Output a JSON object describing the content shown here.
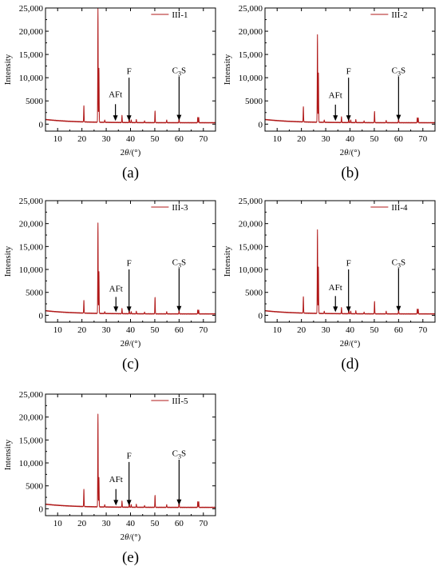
{
  "chart_data": [
    {
      "type": "line",
      "caption": "(a)",
      "series_label": "III-1",
      "xlabel_main": "2",
      "xlabel_theta": "θ",
      "xlabel_unit": "/(°)",
      "ylabel": "Intensity",
      "xlim": [
        5,
        75
      ],
      "ylim": [
        -1500,
        25000
      ],
      "x_ticks": [
        10,
        20,
        30,
        40,
        50,
        60,
        70
      ],
      "y_ticks": [
        0,
        5000,
        10000,
        15000,
        20000,
        25000
      ],
      "y_tick_labels": [
        "0",
        "5000",
        "10,000",
        "15,000",
        "20,000",
        "25,000"
      ],
      "baseline": {
        "start": 1000,
        "end": 300
      },
      "peaks": [
        {
          "x": 20.8,
          "y": 4000
        },
        {
          "x": 26.6,
          "y": 24800
        },
        {
          "x": 27.0,
          "y": 12000
        },
        {
          "x": 29.4,
          "y": 900
        },
        {
          "x": 36.5,
          "y": 1900
        },
        {
          "x": 39.5,
          "y": 1700
        },
        {
          "x": 40.3,
          "y": 900
        },
        {
          "x": 42.4,
          "y": 1000
        },
        {
          "x": 45.8,
          "y": 700
        },
        {
          "x": 50.1,
          "y": 2900
        },
        {
          "x": 54.9,
          "y": 900
        },
        {
          "x": 60.0,
          "y": 1600
        },
        {
          "x": 67.7,
          "y": 1500
        },
        {
          "x": 68.1,
          "y": 1400
        }
      ],
      "annotations": [
        {
          "label": "AFt",
          "x": 33.8,
          "text_y": 5800,
          "arrow_from": 4300,
          "arrow_to": 700
        },
        {
          "label": "F",
          "x": 39.4,
          "text_y": 10800,
          "arrow_from": 10000,
          "arrow_to": 700
        },
        {
          "label": "C",
          "sub": "3",
          "suffix": "S",
          "x": 60.0,
          "text_y": 11000,
          "arrow_from": 10300,
          "arrow_to": 800
        }
      ]
    },
    {
      "type": "line",
      "caption": "(b)",
      "series_label": "III-2",
      "xlabel_main": "2",
      "xlabel_theta": "θ",
      "xlabel_unit": "/(°)",
      "ylabel": "Intensity",
      "xlim": [
        5,
        75
      ],
      "ylim": [
        -1500,
        25000
      ],
      "x_ticks": [
        10,
        20,
        30,
        40,
        50,
        60,
        70
      ],
      "y_ticks": [
        0,
        5000,
        10000,
        15000,
        20000,
        25000
      ],
      "y_tick_labels": [
        "0",
        "5000",
        "10,000",
        "15,000",
        "20,000",
        "25,000"
      ],
      "baseline": {
        "start": 1000,
        "end": 300
      },
      "peaks": [
        {
          "x": 20.8,
          "y": 3800
        },
        {
          "x": 26.6,
          "y": 19200
        },
        {
          "x": 27.0,
          "y": 11000
        },
        {
          "x": 29.4,
          "y": 900
        },
        {
          "x": 36.5,
          "y": 1600
        },
        {
          "x": 39.5,
          "y": 1600
        },
        {
          "x": 40.3,
          "y": 900
        },
        {
          "x": 42.4,
          "y": 1000
        },
        {
          "x": 45.8,
          "y": 700
        },
        {
          "x": 50.1,
          "y": 2800
        },
        {
          "x": 54.9,
          "y": 800
        },
        {
          "x": 60.0,
          "y": 1300
        },
        {
          "x": 67.7,
          "y": 1400
        },
        {
          "x": 68.1,
          "y": 1300
        }
      ],
      "annotations": [
        {
          "label": "AFt",
          "x": 34.0,
          "text_y": 5600,
          "arrow_from": 4200,
          "arrow_to": 700
        },
        {
          "label": "F",
          "x": 39.4,
          "text_y": 10800,
          "arrow_from": 10000,
          "arrow_to": 700
        },
        {
          "label": "C",
          "sub": "3",
          "suffix": "S",
          "x": 60.0,
          "text_y": 11000,
          "arrow_from": 10300,
          "arrow_to": 800
        }
      ]
    },
    {
      "type": "line",
      "caption": "(c)",
      "series_label": "III-3",
      "xlabel_main": "2",
      "xlabel_theta": "θ",
      "xlabel_unit": "/(°)",
      "ylabel": "Intensity",
      "xlim": [
        5,
        75
      ],
      "ylim": [
        -1500,
        25000
      ],
      "x_ticks": [
        10,
        20,
        30,
        40,
        50,
        60,
        70
      ],
      "y_ticks": [
        0,
        5000,
        10000,
        15000,
        20000,
        25000
      ],
      "y_tick_labels": [
        "0",
        "5000",
        "10,000",
        "15,000",
        "20,000",
        "25,000"
      ],
      "baseline": {
        "start": 1000,
        "end": 300
      },
      "peaks": [
        {
          "x": 20.8,
          "y": 3300
        },
        {
          "x": 26.6,
          "y": 20100
        },
        {
          "x": 27.0,
          "y": 9500
        },
        {
          "x": 29.4,
          "y": 800
        },
        {
          "x": 36.5,
          "y": 1500
        },
        {
          "x": 39.5,
          "y": 1400
        },
        {
          "x": 40.3,
          "y": 800
        },
        {
          "x": 42.4,
          "y": 900
        },
        {
          "x": 45.8,
          "y": 700
        },
        {
          "x": 50.1,
          "y": 4000
        },
        {
          "x": 54.9,
          "y": 800
        },
        {
          "x": 60.0,
          "y": 1200
        },
        {
          "x": 67.7,
          "y": 1200
        },
        {
          "x": 68.1,
          "y": 1100
        }
      ],
      "annotations": [
        {
          "label": "AFt",
          "x": 34.0,
          "text_y": 5200,
          "arrow_from": 4000,
          "arrow_to": 700
        },
        {
          "label": "F",
          "x": 39.4,
          "text_y": 10800,
          "arrow_from": 10000,
          "arrow_to": 700
        },
        {
          "label": "C",
          "sub": "3",
          "suffix": "S",
          "x": 60.0,
          "text_y": 11000,
          "arrow_from": 10300,
          "arrow_to": 800
        }
      ]
    },
    {
      "type": "line",
      "caption": "(d)",
      "series_label": "III-4",
      "xlabel_main": "2",
      "xlabel_theta": "θ",
      "xlabel_unit": "/(°)",
      "ylabel": "Intensity",
      "xlim": [
        5,
        75
      ],
      "ylim": [
        -1500,
        25000
      ],
      "x_ticks": [
        10,
        20,
        30,
        40,
        50,
        60,
        70
      ],
      "y_ticks": [
        0,
        5000,
        10000,
        15000,
        20000,
        25000
      ],
      "y_tick_labels": [
        "0",
        "5000",
        "10,000",
        "15,000",
        "20,000",
        "25,000"
      ],
      "baseline": {
        "start": 1000,
        "end": 300
      },
      "peaks": [
        {
          "x": 20.8,
          "y": 4100
        },
        {
          "x": 26.6,
          "y": 18600
        },
        {
          "x": 27.0,
          "y": 10500
        },
        {
          "x": 29.4,
          "y": 900
        },
        {
          "x": 36.5,
          "y": 1700
        },
        {
          "x": 39.5,
          "y": 1600
        },
        {
          "x": 40.3,
          "y": 900
        },
        {
          "x": 42.4,
          "y": 1000
        },
        {
          "x": 45.8,
          "y": 700
        },
        {
          "x": 50.1,
          "y": 3100
        },
        {
          "x": 54.9,
          "y": 900
        },
        {
          "x": 60.0,
          "y": 1400
        },
        {
          "x": 67.7,
          "y": 1400
        },
        {
          "x": 68.1,
          "y": 1300
        }
      ],
      "annotations": [
        {
          "label": "AFt",
          "x": 34.0,
          "text_y": 5500,
          "arrow_from": 4200,
          "arrow_to": 700
        },
        {
          "label": "F",
          "x": 39.4,
          "text_y": 10800,
          "arrow_from": 10000,
          "arrow_to": 700
        },
        {
          "label": "C",
          "sub": "3",
          "suffix": "S",
          "x": 60.0,
          "text_y": 11000,
          "arrow_from": 10300,
          "arrow_to": 800
        }
      ]
    },
    {
      "type": "line",
      "caption": "(e)",
      "series_label": "III-5",
      "xlabel_main": "2",
      "xlabel_theta": "θ",
      "xlabel_unit": "/(°)",
      "ylabel": "Intensity",
      "xlim": [
        5,
        75
      ],
      "ylim": [
        -1500,
        25000
      ],
      "x_ticks": [
        10,
        20,
        30,
        40,
        50,
        60,
        70
      ],
      "y_ticks": [
        0,
        5000,
        10000,
        15000,
        20000,
        25000
      ],
      "y_tick_labels": [
        "0",
        "5000",
        "10,000",
        "15,000",
        "20,000",
        "25,000"
      ],
      "baseline": {
        "start": 1000,
        "end": 300
      },
      "peaks": [
        {
          "x": 20.8,
          "y": 4300
        },
        {
          "x": 26.6,
          "y": 20600
        },
        {
          "x": 27.0,
          "y": 6800
        },
        {
          "x": 29.4,
          "y": 900
        },
        {
          "x": 36.5,
          "y": 1700
        },
        {
          "x": 39.5,
          "y": 1600
        },
        {
          "x": 40.3,
          "y": 900
        },
        {
          "x": 42.4,
          "y": 1000
        },
        {
          "x": 45.8,
          "y": 700
        },
        {
          "x": 50.1,
          "y": 3000
        },
        {
          "x": 54.9,
          "y": 900
        },
        {
          "x": 60.0,
          "y": 2200
        },
        {
          "x": 67.7,
          "y": 1600
        },
        {
          "x": 68.1,
          "y": 1500
        }
      ],
      "annotations": [
        {
          "label": "AFt",
          "x": 34.0,
          "text_y": 5800,
          "arrow_from": 4300,
          "arrow_to": 700
        },
        {
          "label": "F",
          "x": 39.4,
          "text_y": 11000,
          "arrow_from": 10200,
          "arrow_to": 700
        },
        {
          "label": "C",
          "sub": "3",
          "suffix": "S",
          "x": 60.0,
          "text_y": 11500,
          "arrow_from": 10700,
          "arrow_to": 800
        }
      ]
    }
  ]
}
